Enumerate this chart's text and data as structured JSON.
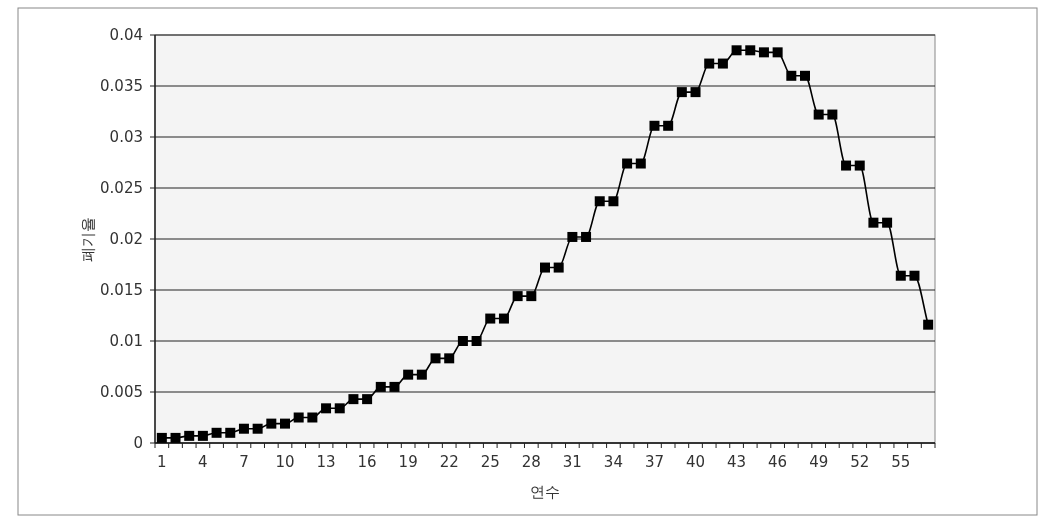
{
  "chart_data": {
    "type": "line",
    "xlabel": "연수",
    "ylabel": "폐기율",
    "categories": [
      "1",
      null,
      null,
      "4",
      null,
      null,
      "7",
      null,
      null,
      "10",
      null,
      null,
      "13",
      null,
      null,
      "16",
      null,
      null,
      "19",
      null,
      null,
      "22",
      null,
      null,
      "25",
      null,
      null,
      "28",
      null,
      null,
      "31",
      null,
      null,
      "34",
      null,
      null,
      "37",
      null,
      null,
      "40",
      null,
      null,
      "43",
      null,
      null,
      "46",
      null,
      null,
      "49",
      null,
      null,
      "52",
      null,
      null,
      "55",
      null,
      null
    ],
    "series": [
      {
        "color": "#000000",
        "values": [
          0.0005,
          0.0005,
          0.0007,
          0.0007,
          0.001,
          0.001,
          0.0014,
          0.0014,
          0.0019,
          0.0019,
          0.0025,
          0.0025,
          0.0034,
          0.0034,
          0.0043,
          0.0043,
          0.0055,
          0.0055,
          0.0067,
          0.0067,
          0.0083,
          0.0083,
          0.01,
          0.01,
          0.0122,
          0.0122,
          0.0144,
          0.0144,
          0.0172,
          0.0172,
          0.0202,
          0.0202,
          0.0237,
          0.0237,
          0.0274,
          0.0274,
          0.0311,
          0.0311,
          0.0344,
          0.0344,
          0.0372,
          0.0372,
          0.0385,
          0.0385,
          0.0383,
          0.0383,
          0.036,
          0.036,
          0.0322,
          0.0322,
          0.0272,
          0.0272,
          0.0216,
          0.0216,
          0.0164,
          0.0164,
          0.0116
        ]
      }
    ],
    "ylim": [
      0,
      0.04
    ],
    "yticks": [
      0,
      0.005,
      0.01,
      0.015,
      0.02,
      0.025,
      0.03,
      0.035,
      0.04
    ],
    "grid": "y",
    "marker": "square",
    "line_style": "solid"
  }
}
